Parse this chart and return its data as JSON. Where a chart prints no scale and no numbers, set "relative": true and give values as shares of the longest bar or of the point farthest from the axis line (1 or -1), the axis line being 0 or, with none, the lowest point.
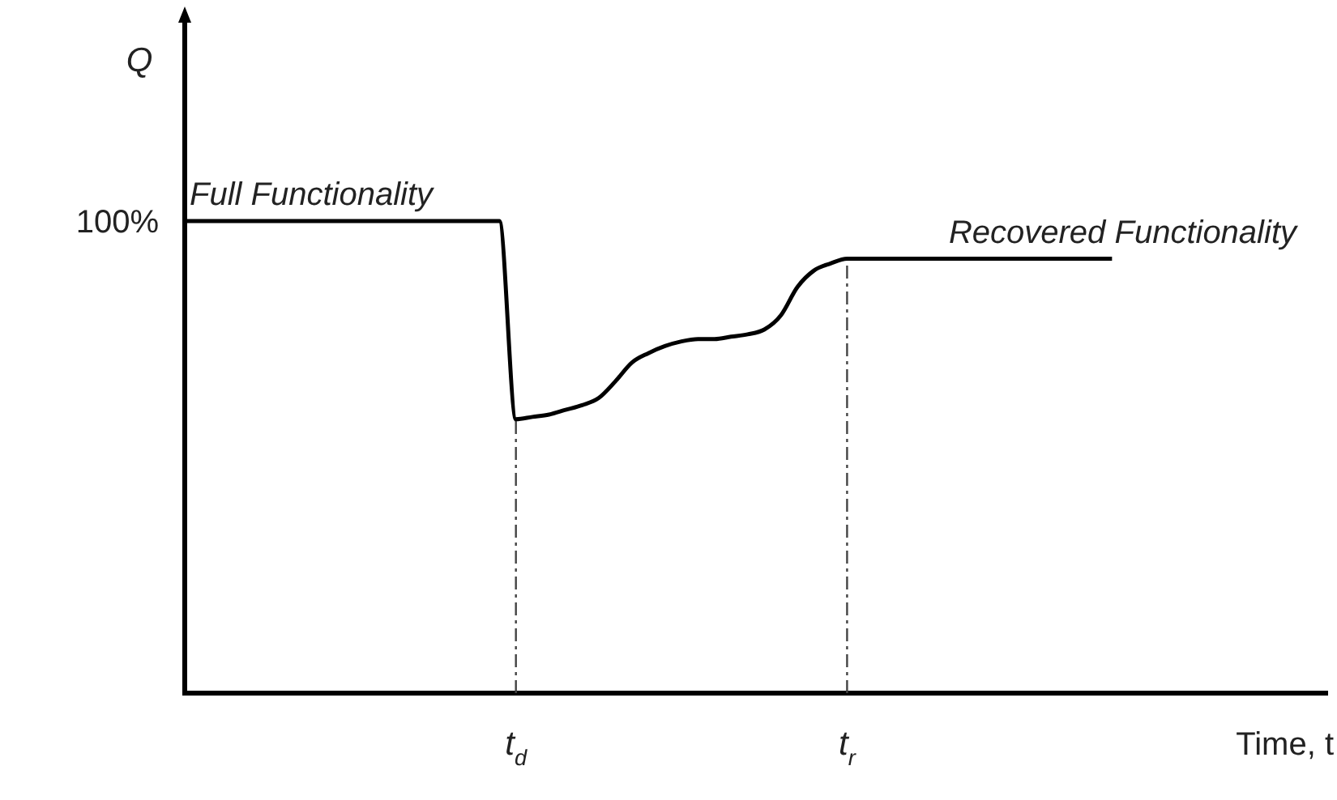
{
  "chart_data": {
    "type": "line",
    "relative": true,
    "xlabel": "Time, t",
    "ylabel": "Q",
    "categories": [
      null,
      null,
      null,
      null,
      null,
      null,
      null,
      null,
      null,
      null,
      null,
      null,
      null,
      null,
      null,
      null,
      null,
      null,
      null,
      null,
      "t$_{d}$",
      null,
      null,
      null,
      null,
      null,
      null,
      null,
      null,
      null,
      null,
      null,
      null,
      null,
      null,
      null,
      null,
      null,
      null,
      null,
      "t$_{r}$",
      null,
      null,
      null,
      null,
      null,
      null,
      null,
      null,
      null,
      null,
      null,
      null,
      null,
      null,
      null,
      null,
      null,
      null,
      null,
      null,
      null,
      null,
      null,
      null,
      null,
      null,
      null,
      null,
      null
    ],
    "series": [
      {
        "color": "#000000",
        "values": [
          1,
          1,
          1,
          1,
          1,
          1,
          1,
          1,
          1,
          1,
          1,
          1,
          1,
          1,
          1,
          1,
          1,
          1,
          1,
          1,
          0.58,
          0.585,
          0.59,
          0.6,
          0.61,
          0.625,
          0.66,
          0.7,
          0.72,
          0.735,
          0.745,
          0.75,
          0.75,
          0.755,
          0.76,
          0.77,
          0.8,
          0.86,
          0.895,
          0.91,
          0.92,
          0.92,
          0.92,
          0.92,
          0.92,
          0.92,
          0.92,
          0.92,
          0.92,
          0.92,
          0.92,
          0.92,
          0.92,
          0.92,
          0.92,
          0.92,
          0.92,
          null,
          null,
          null,
          null,
          null,
          null,
          null,
          null,
          null,
          null,
          null,
          null,
          null
        ]
      }
    ],
    "ref_lines": [
      {
        "axis": "x",
        "value": "t$_{d}$",
        "line_style": "dashed"
      },
      {
        "axis": "x",
        "value": "t$_{r}$",
        "line_style": "dashed"
      }
    ],
    "annotations": [
      "100%",
      "Full Functionality",
      "Recovered Functionality"
    ]
  }
}
